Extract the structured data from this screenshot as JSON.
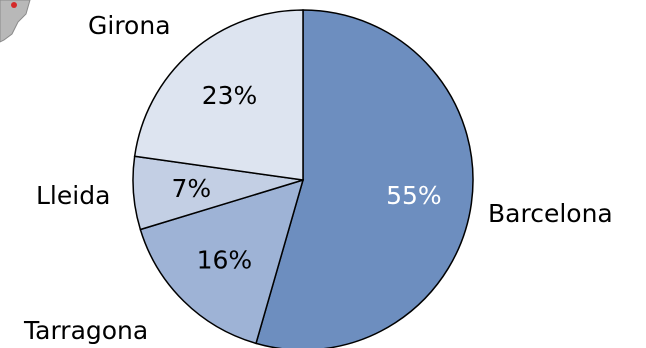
{
  "chart_data": {
    "type": "pie",
    "categories": [
      "Barcelona",
      "Tarragona",
      "Lleida",
      "Girona"
    ],
    "values": [
      55,
      16,
      7,
      23
    ],
    "value_labels": [
      "55%",
      "16%",
      "7%",
      "23%"
    ],
    "colors": [
      "#6d8ebf",
      "#9eb3d6",
      "#c3cfe4",
      "#dde4f0"
    ],
    "label_colors": [
      "#ffffff",
      "#000000",
      "#000000",
      "#000000"
    ],
    "start_angle_deg": 0,
    "direction": "clockwise"
  }
}
